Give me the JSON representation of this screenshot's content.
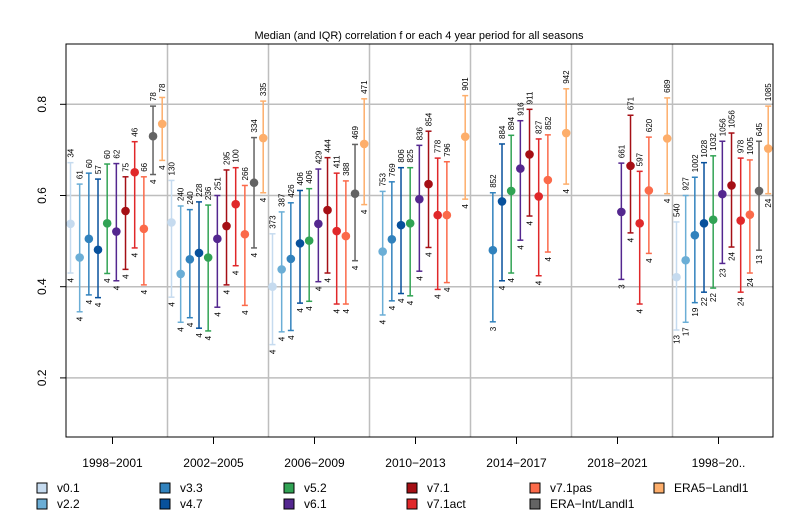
{
  "chart_data": {
    "type": "errorbar",
    "title": "Median (and IQR) correlation f or each 4 year period for all seasons",
    "xlabel": "",
    "ylabel": "",
    "ylim": [
      0.07,
      0.93
    ],
    "yticks": [
      0.2,
      0.4,
      0.6,
      0.8
    ],
    "ytick_labels": [
      "0.2",
      "0.4",
      "0.6",
      "0.8"
    ],
    "grid": true,
    "legend_position": "bottom",
    "categories": [
      "1998−2001",
      "2002−2005",
      "2006−2009",
      "2010−2013",
      "2014−2017",
      "2018−2021",
      "1998−20.."
    ],
    "series": [
      {
        "name": "v0.1",
        "color": "#c6dbef",
        "values": [
          {
            "median": 0.538,
            "lower": 0.43,
            "upper": 0.672,
            "label_top": "34",
            "label_bottom": "4"
          },
          {
            "median": 0.541,
            "lower": 0.377,
            "upper": 0.633,
            "label_top": "130",
            "label_bottom": "4"
          },
          {
            "median": 0.4,
            "lower": 0.273,
            "upper": 0.516,
            "label_top": "373",
            "label_bottom": "4"
          },
          null,
          null,
          null,
          {
            "median": 0.421,
            "lower": 0.305,
            "upper": 0.542,
            "label_top": "540",
            "label_bottom": "13"
          }
        ]
      },
      {
        "name": "v2.2",
        "color": "#6baed6",
        "values": [
          {
            "median": 0.464,
            "lower": 0.345,
            "upper": 0.625,
            "label_top": "61",
            "label_bottom": "4"
          },
          {
            "median": 0.428,
            "lower": 0.322,
            "upper": 0.577,
            "label_top": "240",
            "label_bottom": "4"
          },
          {
            "median": 0.438,
            "lower": 0.301,
            "upper": 0.564,
            "label_top": "387",
            "label_bottom": "4"
          },
          {
            "median": 0.477,
            "lower": 0.338,
            "upper": 0.609,
            "label_top": "753",
            "label_bottom": "4"
          },
          null,
          null,
          {
            "median": 0.458,
            "lower": 0.322,
            "upper": 0.6,
            "label_top": "927",
            "label_bottom": "17"
          }
        ]
      },
      {
        "name": "v3.3",
        "color": "#3182bd",
        "values": [
          {
            "median": 0.505,
            "lower": 0.382,
            "upper": 0.649,
            "label_top": "60",
            "label_bottom": "4"
          },
          {
            "median": 0.46,
            "lower": 0.332,
            "upper": 0.569,
            "label_top": "240",
            "label_bottom": "4"
          },
          {
            "median": 0.461,
            "lower": 0.304,
            "upper": 0.584,
            "label_top": "426",
            "label_bottom": "4"
          },
          {
            "median": 0.504,
            "lower": 0.369,
            "upper": 0.63,
            "label_top": "769",
            "label_bottom": "4"
          },
          {
            "median": 0.48,
            "lower": 0.323,
            "upper": 0.606,
            "label_top": "852",
            "label_bottom": "3"
          },
          null,
          {
            "median": 0.513,
            "lower": 0.365,
            "upper": 0.64,
            "label_top": "1002",
            "label_bottom": "19"
          }
        ]
      },
      {
        "name": "v4.7",
        "color": "#08519c",
        "values": [
          {
            "median": 0.481,
            "lower": 0.376,
            "upper": 0.636,
            "label_top": "57",
            "label_bottom": "4"
          },
          {
            "median": 0.474,
            "lower": 0.309,
            "upper": 0.586,
            "label_top": "228",
            "label_bottom": "4"
          },
          {
            "median": 0.495,
            "lower": 0.364,
            "upper": 0.611,
            "label_top": "406",
            "label_bottom": "4"
          },
          {
            "median": 0.535,
            "lower": 0.385,
            "upper": 0.661,
            "label_top": "806",
            "label_bottom": "4"
          },
          {
            "median": 0.587,
            "lower": 0.413,
            "upper": 0.713,
            "label_top": "884",
            "label_bottom": "4"
          },
          null,
          {
            "median": 0.539,
            "lower": 0.388,
            "upper": 0.672,
            "label_top": "1028",
            "label_bottom": "22"
          }
        ]
      },
      {
        "name": "v5.2",
        "color": "#31a354",
        "values": [
          {
            "median": 0.539,
            "lower": 0.429,
            "upper": 0.669,
            "label_top": "60",
            "label_bottom": "4"
          },
          {
            "median": 0.464,
            "lower": 0.303,
            "upper": 0.579,
            "label_top": "236",
            "label_bottom": "4"
          },
          {
            "median": 0.501,
            "lower": 0.368,
            "upper": 0.615,
            "label_top": "406",
            "label_bottom": "4"
          },
          {
            "median": 0.539,
            "lower": 0.38,
            "upper": 0.661,
            "label_top": "825",
            "label_bottom": "4"
          },
          {
            "median": 0.61,
            "lower": 0.43,
            "upper": 0.732,
            "label_top": "894",
            "label_bottom": "4"
          },
          null,
          {
            "median": 0.547,
            "lower": 0.397,
            "upper": 0.687,
            "label_top": "1032",
            "label_bottom": "22"
          }
        ]
      },
      {
        "name": "v6.1",
        "color": "#54278f",
        "values": [
          {
            "median": 0.521,
            "lower": 0.413,
            "upper": 0.67,
            "label_top": "62",
            "label_bottom": "4"
          },
          {
            "median": 0.505,
            "lower": 0.355,
            "upper": 0.6,
            "label_top": "251",
            "label_bottom": "4"
          },
          {
            "median": 0.538,
            "lower": 0.411,
            "upper": 0.658,
            "label_top": "429",
            "label_bottom": "4"
          },
          {
            "median": 0.592,
            "lower": 0.434,
            "upper": 0.71,
            "label_top": "836",
            "label_bottom": "4"
          },
          {
            "median": 0.659,
            "lower": 0.502,
            "upper": 0.764,
            "label_top": "916",
            "label_bottom": "4"
          },
          {
            "median": 0.564,
            "lower": 0.416,
            "upper": 0.671,
            "label_top": "661",
            "label_bottom": "3"
          },
          {
            "median": 0.603,
            "lower": 0.451,
            "upper": 0.719,
            "label_top": "1056",
            "label_bottom": "23"
          }
        ]
      },
      {
        "name": "v7.1",
        "color": "#a50f15",
        "values": [
          {
            "median": 0.566,
            "lower": 0.438,
            "upper": 0.641,
            "label_top": "75",
            "label_bottom": "4"
          },
          {
            "median": 0.533,
            "lower": 0.404,
            "upper": 0.656,
            "label_top": "295",
            "label_bottom": "4"
          },
          {
            "median": 0.568,
            "lower": 0.43,
            "upper": 0.683,
            "label_top": "444",
            "label_bottom": "4"
          },
          {
            "median": 0.625,
            "lower": 0.486,
            "upper": 0.741,
            "label_top": "854",
            "label_bottom": "4"
          },
          {
            "median": 0.69,
            "lower": 0.555,
            "upper": 0.789,
            "label_top": "911",
            "label_bottom": "4"
          },
          {
            "median": 0.665,
            "lower": 0.518,
            "upper": 0.776,
            "label_top": "671",
            "label_bottom": "4"
          },
          {
            "median": 0.622,
            "lower": 0.487,
            "upper": 0.737,
            "label_top": "1056",
            "label_bottom": "24"
          }
        ]
      },
      {
        "name": "v7.1act",
        "color": "#e0282a",
        "values": [
          {
            "median": 0.651,
            "lower": 0.485,
            "upper": 0.718,
            "label_top": "46",
            "label_bottom": "4"
          },
          {
            "median": 0.581,
            "lower": 0.446,
            "upper": 0.661,
            "label_top": "100",
            "label_bottom": "4"
          },
          {
            "median": 0.522,
            "lower": 0.362,
            "upper": 0.649,
            "label_top": "411",
            "label_bottom": "4"
          },
          {
            "median": 0.557,
            "lower": 0.394,
            "upper": 0.682,
            "label_top": "778",
            "label_bottom": "4"
          },
          {
            "median": 0.598,
            "lower": 0.424,
            "upper": 0.724,
            "label_top": "827",
            "label_bottom": "4"
          },
          {
            "median": 0.539,
            "lower": 0.362,
            "upper": 0.653,
            "label_top": "597",
            "label_bottom": "4"
          },
          {
            "median": 0.545,
            "lower": 0.388,
            "upper": 0.682,
            "label_top": "978",
            "label_bottom": "24"
          }
        ]
      },
      {
        "name": "v7.1pas",
        "color": "#fb6a4a",
        "values": [
          {
            "median": 0.527,
            "lower": 0.404,
            "upper": 0.641,
            "label_top": "66",
            "label_bottom": "4"
          },
          {
            "median": 0.515,
            "lower": 0.359,
            "upper": 0.622,
            "label_top": "266",
            "label_bottom": "4"
          },
          {
            "median": 0.511,
            "lower": 0.362,
            "upper": 0.632,
            "label_top": "388",
            "label_bottom": "4"
          },
          {
            "median": 0.557,
            "lower": 0.409,
            "upper": 0.674,
            "label_top": "796",
            "label_bottom": "4"
          },
          {
            "median": 0.634,
            "lower": 0.476,
            "upper": 0.733,
            "label_top": "852",
            "label_bottom": "4"
          },
          {
            "median": 0.611,
            "lower": 0.473,
            "upper": 0.728,
            "label_top": "620",
            "label_bottom": "4"
          },
          {
            "median": 0.558,
            "lower": 0.43,
            "upper": 0.678,
            "label_top": "1005",
            "label_bottom": "24"
          }
        ]
      },
      {
        "name": "ERA−Int/Landl1",
        "color": "#636363",
        "values": [
          {
            "median": 0.73,
            "lower": 0.646,
            "upper": 0.796,
            "label_top": "78",
            "label_bottom": "4"
          },
          {
            "median": 0.628,
            "lower": 0.485,
            "upper": 0.727,
            "label_top": "334",
            "label_bottom": "4"
          },
          {
            "median": 0.604,
            "lower": 0.457,
            "upper": 0.712,
            "label_top": "469",
            "label_bottom": "4"
          },
          null,
          null,
          null,
          {
            "median": 0.61,
            "lower": 0.48,
            "upper": 0.719,
            "label_top": "645",
            "label_bottom": "13"
          }
        ]
      },
      {
        "name": "ERA5−Landl1",
        "color": "#fdae6b",
        "values": [
          {
            "median": 0.757,
            "lower": 0.677,
            "upper": 0.815,
            "label_top": "78",
            "label_bottom": "4"
          },
          {
            "median": 0.726,
            "lower": 0.606,
            "upper": 0.807,
            "label_top": "335",
            "label_bottom": "4"
          },
          {
            "median": 0.713,
            "lower": 0.58,
            "upper": 0.812,
            "label_top": "471",
            "label_bottom": "4"
          },
          {
            "median": 0.729,
            "lower": 0.592,
            "upper": 0.819,
            "label_top": "901",
            "label_bottom": "4"
          },
          {
            "median": 0.737,
            "lower": 0.625,
            "upper": 0.834,
            "label_top": "942",
            "label_bottom": "4"
          },
          {
            "median": 0.725,
            "lower": 0.604,
            "upper": 0.814,
            "label_top": "689",
            "label_bottom": "4"
          },
          {
            "median": 0.703,
            "lower": 0.604,
            "upper": 0.796,
            "label_top": "1085",
            "label_bottom": "24"
          }
        ]
      }
    ]
  }
}
